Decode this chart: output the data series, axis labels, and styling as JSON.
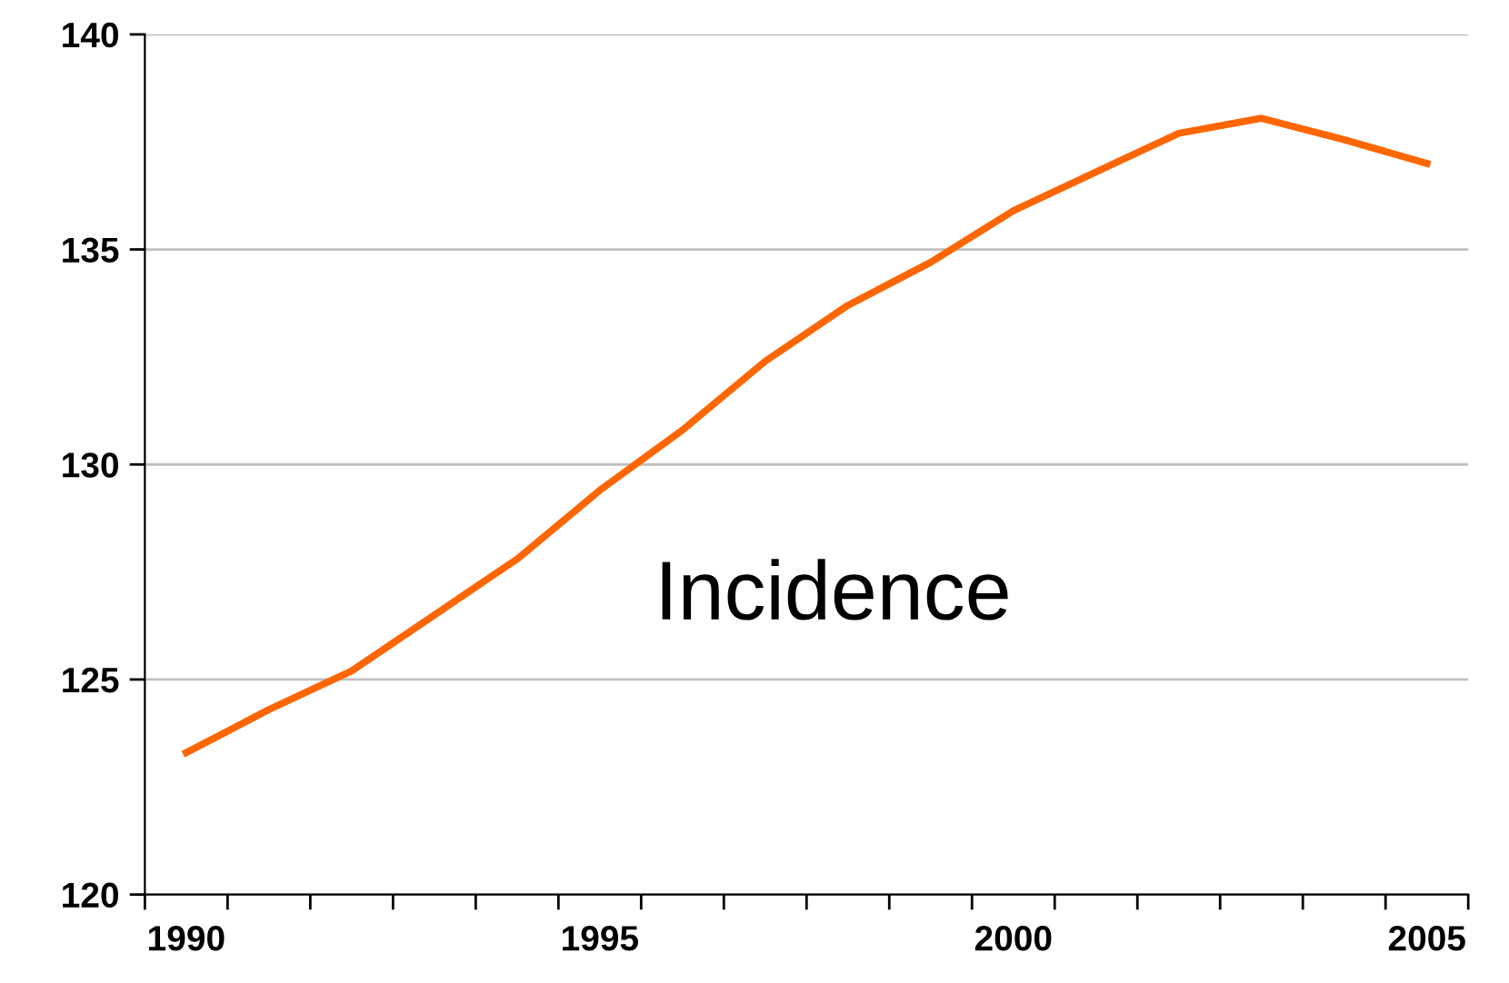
{
  "chart_data": {
    "type": "line",
    "categories": [
      "1990",
      null,
      null,
      null,
      null,
      "1995",
      null,
      null,
      null,
      null,
      "2000",
      null,
      null,
      null,
      null,
      "2005"
    ],
    "series": [
      {
        "color": "#ff6600",
        "values": [
          123.3,
          124.3,
          125.2,
          126.5,
          127.8,
          129.4,
          130.8,
          132.4,
          133.7,
          134.7,
          135.9,
          136.8,
          137.7,
          138.05,
          137.55,
          137.0
        ]
      }
    ],
    "ylim": [
      120,
      140
    ],
    "yticks": [
      120,
      125,
      130,
      135,
      140
    ],
    "grid": "y",
    "marker": "none",
    "line_style": "solid",
    "annotations": [
      "Incidence"
    ]
  }
}
